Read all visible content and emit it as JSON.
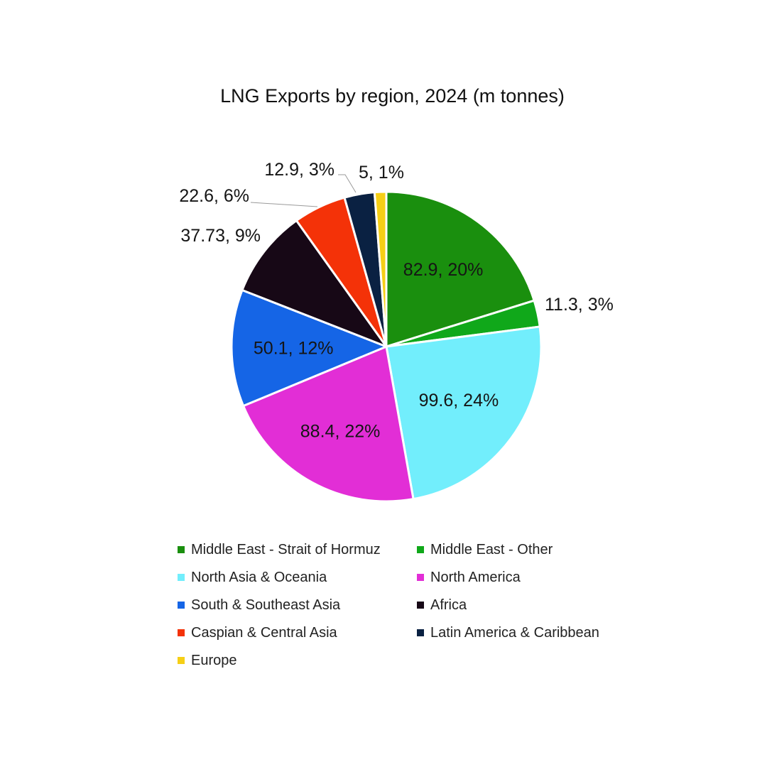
{
  "chart_data": {
    "type": "pie",
    "title": "LNG Exports by region, 2024 (m tonnes)",
    "start_angle_deg": 0,
    "direction": "clockwise",
    "legend_position": "bottom",
    "slices": [
      {
        "name": "Middle East - Strait of Hormuz",
        "value": 82.9,
        "percent": "20%",
        "label": "82.9, 20%",
        "color": "#1a8f0e",
        "label_placement": "inside"
      },
      {
        "name": "Middle East - Other",
        "value": 11.3,
        "percent": "3%",
        "label": "11.3, 3%",
        "color": "#10a81a",
        "label_placement": "outside"
      },
      {
        "name": "North Asia & Oceania",
        "value": 99.6,
        "percent": "24%",
        "label": "99.6, 24%",
        "color": "#72eefc",
        "label_placement": "inside"
      },
      {
        "name": "North America",
        "value": 88.4,
        "percent": "22%",
        "label": "88.4, 22%",
        "color": "#e22ed6",
        "label_placement": "inside"
      },
      {
        "name": "South & Southeast Asia",
        "value": 50.1,
        "percent": "12%",
        "label": "50.1, 12%",
        "color": "#1565e6",
        "label_placement": "inside"
      },
      {
        "name": "Africa",
        "value": 37.73,
        "percent": "9%",
        "label": "37.73, 9%",
        "color": "#170816",
        "label_placement": "outside"
      },
      {
        "name": "Caspian & Central Asia",
        "value": 22.6,
        "percent": "6%",
        "label": "22.6, 6%",
        "color": "#f43208",
        "label_placement": "outside"
      },
      {
        "name": "Latin America & Caribbean",
        "value": 12.9,
        "percent": "3%",
        "label": "12.9, 3%",
        "color": "#0a2142",
        "label_placement": "outside"
      },
      {
        "name": "Europe",
        "value": 5,
        "percent": "1%",
        "label": "5, 1%",
        "color": "#f6cf16",
        "label_placement": "outside"
      }
    ]
  }
}
